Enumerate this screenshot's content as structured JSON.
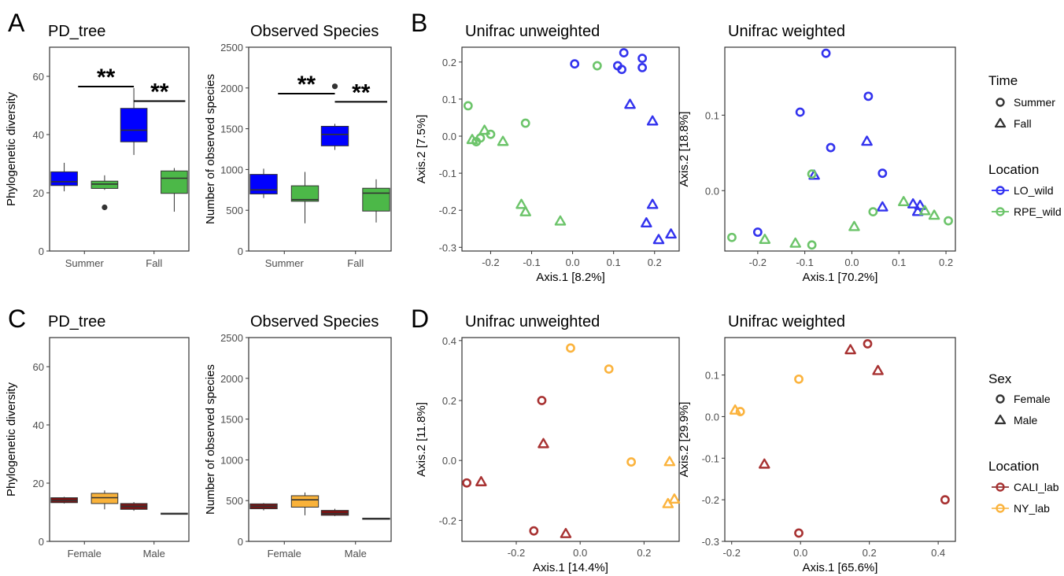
{
  "panel_letters": [
    "A",
    "B",
    "C",
    "D"
  ],
  "colors": {
    "LO_wild": "#0000ff",
    "LO_wild_point": "#3333ee",
    "RPE_wild": "#4cb848",
    "RPE_wild_point": "#6cc46a",
    "CALI_lab": "#7a1414",
    "CALI_lab_point": "#a83232",
    "NY_lab": "#f9b23a",
    "NY_lab_point": "#fbb33d",
    "box_outline": "#333333",
    "panel_border": "#333333"
  },
  "legend_top": {
    "time_title": "Time",
    "time_items": [
      {
        "label": "Summer",
        "shape": "circle"
      },
      {
        "label": "Fall",
        "shape": "triangle"
      }
    ],
    "location_title": "Location",
    "location_items": [
      {
        "label": "LO_wild",
        "color_key": "LO_wild"
      },
      {
        "label": "RPE_wild",
        "color_key": "RPE_wild"
      }
    ]
  },
  "legend_bottom": {
    "sex_title": "Sex",
    "sex_items": [
      {
        "label": "Female",
        "shape": "circle"
      },
      {
        "label": "Male",
        "shape": "triangle"
      }
    ],
    "location_title": "Location",
    "location_items": [
      {
        "label": "CALI_lab",
        "color_key": "CALI_lab"
      },
      {
        "label": "NY_lab",
        "color_key": "NY_lab"
      }
    ]
  },
  "chart_data": [
    {
      "id": "A1",
      "type": "box",
      "title": "PD_tree",
      "ylabel": "Phylogenetic diversity",
      "xlabel": "",
      "categories": [
        "Summer",
        "Fall"
      ],
      "ylim": [
        0,
        70
      ],
      "yticks": [
        0,
        20,
        40,
        60
      ],
      "boxes": [
        {
          "category": "Summer",
          "group": "LO_wild",
          "min": 20.5,
          "q1": 22.5,
          "median": 23.8,
          "q3": 27.2,
          "max": 30.3,
          "outliers": []
        },
        {
          "category": "Summer",
          "group": "RPE_wild",
          "min": 21.0,
          "q1": 21.5,
          "median": 23.0,
          "q3": 24.0,
          "max": 26.0,
          "outliers": [
            15.0
          ]
        },
        {
          "category": "Fall",
          "group": "LO_wild",
          "min": 33.0,
          "q1": 37.5,
          "median": 41.5,
          "q3": 49.0,
          "max": 56.0,
          "outliers": []
        },
        {
          "category": "Fall",
          "group": "RPE_wild",
          "min": 13.5,
          "q1": 19.8,
          "median": 25.0,
          "q3": 27.5,
          "max": 28.5,
          "outliers": []
        }
      ],
      "significance": [
        {
          "label": "**",
          "from": [
            "Summer",
            "mid"
          ],
          "to": [
            "Fall",
            "LO_wild"
          ],
          "y": 56.5
        },
        {
          "label": "**",
          "from": [
            "Fall",
            "LO_wild"
          ],
          "to": [
            "Fall",
            "RPE_wild"
          ],
          "y": 51.5
        }
      ]
    },
    {
      "id": "A2",
      "type": "box",
      "title": "Observed Species",
      "ylabel": "Number of observed species",
      "xlabel": "",
      "categories": [
        "Summer",
        "Fall"
      ],
      "ylim": [
        0,
        2500
      ],
      "yticks": [
        0,
        500,
        1000,
        1500,
        2000,
        2500
      ],
      "boxes": [
        {
          "category": "Summer",
          "group": "LO_wild",
          "min": 650,
          "q1": 700,
          "median": 750,
          "q3": 940,
          "max": 1010,
          "outliers": []
        },
        {
          "category": "Summer",
          "group": "RPE_wild",
          "min": 340,
          "q1": 610,
          "median": 630,
          "q3": 800,
          "max": 970,
          "outliers": []
        },
        {
          "category": "Fall",
          "group": "LO_wild",
          "min": 1240,
          "q1": 1290,
          "median": 1430,
          "q3": 1530,
          "max": 1560,
          "outliers": [
            2020
          ]
        },
        {
          "category": "Fall",
          "group": "RPE_wild",
          "min": 350,
          "q1": 490,
          "median": 710,
          "q3": 770,
          "max": 880,
          "outliers": []
        }
      ],
      "significance": [
        {
          "label": "**",
          "from": [
            "Summer",
            "mid"
          ],
          "to": [
            "Fall",
            "LO_wild"
          ],
          "y": 1930
        },
        {
          "label": "**",
          "from": [
            "Fall",
            "LO_wild"
          ],
          "to": [
            "Fall",
            "RPE_wild"
          ],
          "y": 1830
        }
      ]
    },
    {
      "id": "B1",
      "type": "scatter",
      "title": "Unifrac unweighted",
      "xlabel": "Axis.1   [8.2%]",
      "ylabel": "Axis.2   [7.5%]",
      "xlim": [
        -0.27,
        0.26
      ],
      "ylim": [
        -0.31,
        0.24
      ],
      "xticks": [
        -0.2,
        -0.1,
        0.0,
        0.1,
        0.2
      ],
      "yticks": [
        -0.3,
        -0.2,
        -0.1,
        0.0,
        0.1,
        0.2
      ],
      "points": [
        {
          "x": 0.005,
          "y": 0.195,
          "shape": "circle",
          "group": "LO_wild"
        },
        {
          "x": 0.11,
          "y": 0.19,
          "shape": "circle",
          "group": "LO_wild"
        },
        {
          "x": 0.12,
          "y": 0.18,
          "shape": "circle",
          "group": "LO_wild"
        },
        {
          "x": 0.125,
          "y": 0.225,
          "shape": "circle",
          "group": "LO_wild"
        },
        {
          "x": 0.17,
          "y": 0.21,
          "shape": "circle",
          "group": "LO_wild"
        },
        {
          "x": 0.17,
          "y": 0.185,
          "shape": "circle",
          "group": "LO_wild"
        },
        {
          "x": 0.14,
          "y": 0.085,
          "shape": "triangle",
          "group": "LO_wild"
        },
        {
          "x": 0.195,
          "y": 0.04,
          "shape": "triangle",
          "group": "LO_wild"
        },
        {
          "x": 0.195,
          "y": -0.185,
          "shape": "triangle",
          "group": "LO_wild"
        },
        {
          "x": 0.18,
          "y": -0.235,
          "shape": "triangle",
          "group": "LO_wild"
        },
        {
          "x": 0.21,
          "y": -0.28,
          "shape": "triangle",
          "group": "LO_wild"
        },
        {
          "x": 0.24,
          "y": -0.265,
          "shape": "triangle",
          "group": "LO_wild"
        },
        {
          "x": 0.06,
          "y": 0.19,
          "shape": "circle",
          "group": "RPE_wild"
        },
        {
          "x": -0.115,
          "y": 0.035,
          "shape": "circle",
          "group": "RPE_wild"
        },
        {
          "x": -0.255,
          "y": 0.082,
          "shape": "circle",
          "group": "RPE_wild"
        },
        {
          "x": -0.2,
          "y": 0.005,
          "shape": "circle",
          "group": "RPE_wild"
        },
        {
          "x": -0.235,
          "y": -0.015,
          "shape": "circle",
          "group": "RPE_wild"
        },
        {
          "x": -0.225,
          "y": -0.005,
          "shape": "circle",
          "group": "RPE_wild"
        },
        {
          "x": -0.245,
          "y": -0.01,
          "shape": "triangle",
          "group": "RPE_wild"
        },
        {
          "x": -0.215,
          "y": 0.015,
          "shape": "triangle",
          "group": "RPE_wild"
        },
        {
          "x": -0.17,
          "y": -0.015,
          "shape": "triangle",
          "group": "RPE_wild"
        },
        {
          "x": -0.125,
          "y": -0.185,
          "shape": "triangle",
          "group": "RPE_wild"
        },
        {
          "x": -0.115,
          "y": -0.205,
          "shape": "triangle",
          "group": "RPE_wild"
        },
        {
          "x": -0.03,
          "y": -0.23,
          "shape": "triangle",
          "group": "RPE_wild"
        }
      ]
    },
    {
      "id": "B2",
      "type": "scatter",
      "title": "Unifrac weighted",
      "xlabel": "Axis.1   [70.2%]",
      "ylabel": "Axis.2   [18.8%]",
      "xlim": [
        -0.27,
        0.22
      ],
      "ylim": [
        -0.08,
        0.19
      ],
      "xticks": [
        -0.2,
        -0.1,
        0.0,
        0.1,
        0.2
      ],
      "yticks": [
        0.0,
        0.1
      ],
      "points": [
        {
          "x": -0.055,
          "y": 0.182,
          "shape": "circle",
          "group": "LO_wild"
        },
        {
          "x": 0.035,
          "y": 0.125,
          "shape": "circle",
          "group": "LO_wild"
        },
        {
          "x": -0.11,
          "y": 0.104,
          "shape": "circle",
          "group": "LO_wild"
        },
        {
          "x": -0.045,
          "y": 0.057,
          "shape": "circle",
          "group": "LO_wild"
        },
        {
          "x": 0.065,
          "y": 0.023,
          "shape": "circle",
          "group": "LO_wild"
        },
        {
          "x": -0.2,
          "y": -0.055,
          "shape": "circle",
          "group": "LO_wild"
        },
        {
          "x": 0.032,
          "y": 0.065,
          "shape": "triangle",
          "group": "LO_wild"
        },
        {
          "x": -0.08,
          "y": 0.02,
          "shape": "triangle",
          "group": "LO_wild"
        },
        {
          "x": 0.065,
          "y": -0.022,
          "shape": "triangle",
          "group": "LO_wild"
        },
        {
          "x": 0.13,
          "y": -0.018,
          "shape": "triangle",
          "group": "LO_wild"
        },
        {
          "x": 0.145,
          "y": -0.02,
          "shape": "triangle",
          "group": "LO_wild"
        },
        {
          "x": 0.14,
          "y": -0.028,
          "shape": "triangle",
          "group": "LO_wild"
        },
        {
          "x": -0.085,
          "y": 0.022,
          "shape": "circle",
          "group": "RPE_wild"
        },
        {
          "x": 0.045,
          "y": -0.028,
          "shape": "circle",
          "group": "RPE_wild"
        },
        {
          "x": -0.255,
          "y": -0.062,
          "shape": "circle",
          "group": "RPE_wild"
        },
        {
          "x": -0.085,
          "y": -0.072,
          "shape": "circle",
          "group": "RPE_wild"
        },
        {
          "x": 0.205,
          "y": -0.04,
          "shape": "circle",
          "group": "RPE_wild"
        },
        {
          "x": -0.185,
          "y": -0.065,
          "shape": "triangle",
          "group": "RPE_wild"
        },
        {
          "x": -0.12,
          "y": -0.07,
          "shape": "triangle",
          "group": "RPE_wild"
        },
        {
          "x": 0.005,
          "y": -0.048,
          "shape": "triangle",
          "group": "RPE_wild"
        },
        {
          "x": 0.11,
          "y": -0.015,
          "shape": "triangle",
          "group": "RPE_wild"
        },
        {
          "x": 0.155,
          "y": -0.027,
          "shape": "triangle",
          "group": "RPE_wild"
        },
        {
          "x": 0.175,
          "y": -0.033,
          "shape": "triangle",
          "group": "RPE_wild"
        }
      ]
    },
    {
      "id": "C1",
      "type": "box",
      "title": "PD_tree",
      "ylabel": "Phylogenetic diversity",
      "xlabel": "",
      "categories": [
        "Female",
        "Male"
      ],
      "ylim": [
        0,
        70
      ],
      "yticks": [
        0,
        20,
        40,
        60
      ],
      "boxes": [
        {
          "category": "Female",
          "group": "CALI_lab",
          "min": 13.0,
          "q1": 13.3,
          "median": 14.0,
          "q3": 15.0,
          "max": 15.3,
          "outliers": []
        },
        {
          "category": "Female",
          "group": "NY_lab",
          "min": 11.0,
          "q1": 13.0,
          "median": 15.0,
          "q3": 16.5,
          "max": 17.5,
          "outliers": []
        },
        {
          "category": "Male",
          "group": "CALI_lab",
          "min": 10.5,
          "q1": 11.0,
          "median": 12.0,
          "q3": 13.0,
          "max": 13.5,
          "outliers": []
        },
        {
          "category": "Male",
          "group": "NY_lab",
          "min": 9.3,
          "q1": 9.3,
          "median": 9.5,
          "q3": 9.7,
          "max": 9.7,
          "outliers": []
        }
      ],
      "significance": []
    },
    {
      "id": "C2",
      "type": "box",
      "title": "Observed Species",
      "ylabel": "Number of observed species",
      "xlabel": "",
      "categories": [
        "Female",
        "Male"
      ],
      "ylim": [
        0,
        2500
      ],
      "yticks": [
        0,
        500,
        1000,
        1500,
        2000,
        2500
      ],
      "boxes": [
        {
          "category": "Female",
          "group": "CALI_lab",
          "min": 380,
          "q1": 400,
          "median": 430,
          "q3": 460,
          "max": 470,
          "outliers": []
        },
        {
          "category": "Female",
          "group": "NY_lab",
          "min": 320,
          "q1": 420,
          "median": 510,
          "q3": 560,
          "max": 600,
          "outliers": []
        },
        {
          "category": "Male",
          "group": "CALI_lab",
          "min": 310,
          "q1": 320,
          "median": 340,
          "q3": 380,
          "max": 400,
          "outliers": []
        },
        {
          "category": "Male",
          "group": "NY_lab",
          "min": 275,
          "q1": 275,
          "median": 280,
          "q3": 285,
          "max": 285,
          "outliers": []
        }
      ],
      "significance": []
    },
    {
      "id": "D1",
      "type": "scatter",
      "title": "Unifrac unweighted",
      "xlabel": "Axis.1   [14.4%]",
      "ylabel": "Axis.2   [11.8%]",
      "xlim": [
        -0.37,
        0.31
      ],
      "ylim": [
        -0.27,
        0.41
      ],
      "xticks": [
        -0.2,
        0.0,
        0.2
      ],
      "yticks": [
        -0.2,
        0.0,
        0.2,
        0.4
      ],
      "points": [
        {
          "x": -0.03,
          "y": 0.375,
          "shape": "circle",
          "group": "NY_lab"
        },
        {
          "x": 0.09,
          "y": 0.305,
          "shape": "circle",
          "group": "NY_lab"
        },
        {
          "x": 0.16,
          "y": -0.005,
          "shape": "circle",
          "group": "NY_lab"
        },
        {
          "x": 0.28,
          "y": -0.005,
          "shape": "triangle",
          "group": "NY_lab"
        },
        {
          "x": 0.275,
          "y": -0.145,
          "shape": "triangle",
          "group": "NY_lab"
        },
        {
          "x": 0.295,
          "y": -0.13,
          "shape": "triangle",
          "group": "NY_lab"
        },
        {
          "x": -0.12,
          "y": 0.2,
          "shape": "circle",
          "group": "CALI_lab"
        },
        {
          "x": -0.355,
          "y": -0.075,
          "shape": "circle",
          "group": "CALI_lab"
        },
        {
          "x": -0.145,
          "y": -0.235,
          "shape": "circle",
          "group": "CALI_lab"
        },
        {
          "x": -0.115,
          "y": 0.055,
          "shape": "triangle",
          "group": "CALI_lab"
        },
        {
          "x": -0.31,
          "y": -0.072,
          "shape": "triangle",
          "group": "CALI_lab"
        },
        {
          "x": -0.045,
          "y": -0.245,
          "shape": "triangle",
          "group": "CALI_lab"
        }
      ]
    },
    {
      "id": "D2",
      "type": "scatter",
      "title": "Unifrac weighted",
      "xlabel": "Axis.1   [65.6%]",
      "ylabel": "Axis.2   [29.9%]",
      "xlim": [
        -0.22,
        0.45
      ],
      "ylim": [
        -0.3,
        0.19
      ],
      "xticks": [
        -0.2,
        0.0,
        0.2,
        0.4
      ],
      "yticks": [
        -0.3,
        -0.2,
        -0.1,
        0.0,
        0.1
      ],
      "points": [
        {
          "x": -0.005,
          "y": 0.09,
          "shape": "circle",
          "group": "NY_lab"
        },
        {
          "x": -0.175,
          "y": 0.012,
          "shape": "circle",
          "group": "NY_lab"
        },
        {
          "x": -0.19,
          "y": 0.015,
          "shape": "triangle",
          "group": "NY_lab"
        },
        {
          "x": 0.195,
          "y": 0.175,
          "shape": "circle",
          "group": "CALI_lab"
        },
        {
          "x": 0.42,
          "y": -0.2,
          "shape": "circle",
          "group": "CALI_lab"
        },
        {
          "x": -0.005,
          "y": -0.28,
          "shape": "circle",
          "group": "CALI_lab"
        },
        {
          "x": 0.145,
          "y": 0.16,
          "shape": "triangle",
          "group": "CALI_lab"
        },
        {
          "x": 0.225,
          "y": 0.11,
          "shape": "triangle",
          "group": "CALI_lab"
        },
        {
          "x": -0.105,
          "y": -0.115,
          "shape": "triangle",
          "group": "CALI_lab"
        }
      ]
    }
  ]
}
